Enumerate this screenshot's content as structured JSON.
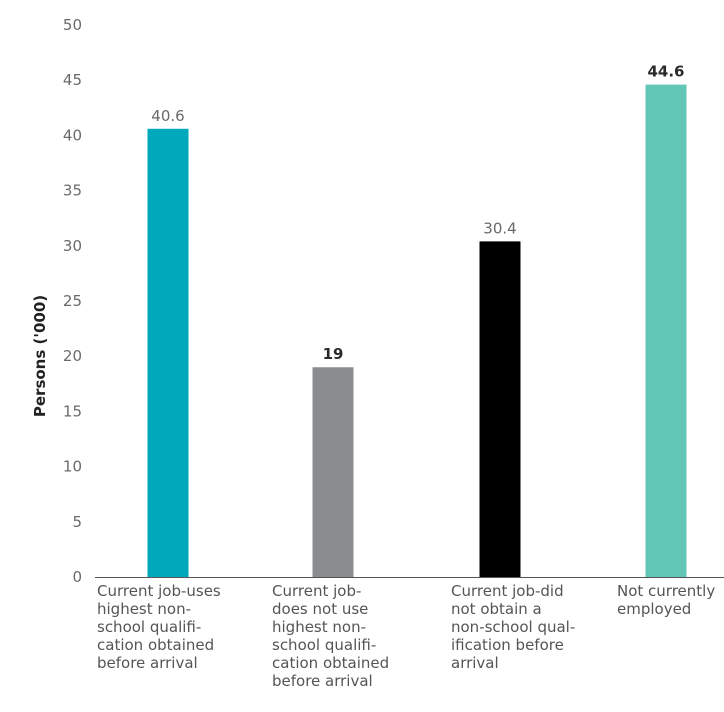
{
  "chart_data": {
    "type": "bar",
    "categories": [
      "Current job-uses highest non-school qualification obtained before arrival",
      "Current job-does not use highest non-school qualification obtained before arrival",
      "Current job-did not obtain a non-school qualification before arrival",
      "Not currently employed"
    ],
    "category_lines": [
      [
        "Current job-uses",
        "highest non-",
        "school qualifi-",
        "cation obtained",
        "before arrival"
      ],
      [
        "Current job-",
        "does not use",
        "highest non-",
        "school qualifi-",
        "cation obtained",
        "before arrival"
      ],
      [
        "Current job-did",
        "not obtain a",
        "non-school qual-",
        "ification before",
        "arrival"
      ],
      [
        "Not currently",
        "employed"
      ]
    ],
    "values": [
      40.6,
      19,
      30.4,
      44.6
    ],
    "value_labels": [
      "40.6",
      "19",
      "30.4",
      "44.6"
    ],
    "label_bold": [
      false,
      true,
      false,
      true
    ],
    "colors": [
      "#00a8bc",
      "#8a8c8f",
      "#000000",
      "#62c6b6"
    ],
    "ylabel": "Persons ('000)",
    "yticks": [
      0,
      5,
      10,
      15,
      20,
      25,
      30,
      35,
      40,
      45,
      50
    ],
    "ylim": [
      0,
      50
    ],
    "grid": false,
    "axis_color": "#555555"
  }
}
